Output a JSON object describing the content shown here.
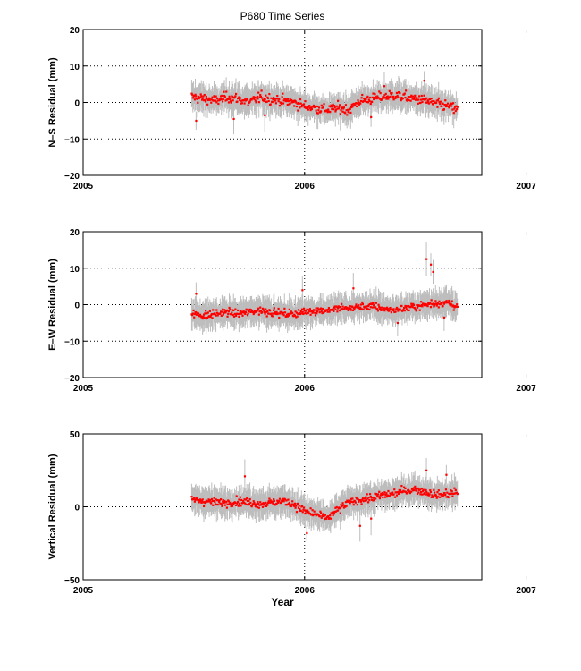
{
  "figure": {
    "title": "P680 Time Series",
    "xlabel": "Year",
    "colors": {
      "points": "#ff0000",
      "error_bars": "#bdbdbd",
      "grid": "#000000",
      "background": "#ffffff"
    }
  },
  "chart_data": [
    {
      "type": "scatter",
      "title": "P680 Time Series",
      "ylabel": "N–S Residual (mm)",
      "xlabel": "",
      "xlim": [
        2005,
        2006.8
      ],
      "ylim": [
        -20,
        20
      ],
      "xticks": [
        2005,
        2006,
        2007
      ],
      "xticklabels": [
        "2005",
        "2006",
        "2007"
      ],
      "yticks": [
        -20,
        -10,
        0,
        10,
        20
      ],
      "yticklabels": [
        "−20",
        "−10",
        "0",
        "10",
        "20"
      ],
      "grid": "dotted",
      "x_range": [
        2005.49,
        2006.69
      ],
      "series": [
        {
          "x": [
            2005.5,
            2005.55,
            2005.6,
            2005.65,
            2005.7,
            2005.75,
            2005.8,
            2005.85,
            2005.9,
            2005.95,
            2006.0,
            2006.05,
            2006.1,
            2006.15,
            2006.2,
            2006.25,
            2006.3,
            2006.35,
            2006.4,
            2006.45,
            2006.5,
            2006.55,
            2006.6,
            2006.65,
            2006.69
          ],
          "y": [
            1.5,
            1.0,
            0.5,
            1.5,
            1.0,
            0.0,
            1.5,
            1.0,
            0.5,
            0.0,
            -1.0,
            -1.5,
            -2.0,
            -1.5,
            -2.0,
            0.5,
            1.0,
            1.5,
            2.0,
            1.5,
            1.0,
            0.5,
            -0.5,
            -1.0,
            -2.0
          ],
          "noise": 2.0,
          "error": 3.5
        }
      ],
      "outliers": [
        [
          2005.51,
          -5.0
        ],
        [
          2005.68,
          -4.5
        ],
        [
          2005.82,
          -3.5
        ],
        [
          2006.54,
          6.0
        ],
        [
          2006.3,
          -4.0
        ],
        [
          2006.36,
          4.5
        ]
      ]
    },
    {
      "type": "scatter",
      "ylabel": "E–W Residual (mm)",
      "xlabel": "",
      "xlim": [
        2005,
        2006.8
      ],
      "ylim": [
        -20,
        20
      ],
      "xticks": [
        2005,
        2006,
        2007
      ],
      "xticklabels": [
        "2005",
        "2006",
        "2007"
      ],
      "yticks": [
        -20,
        -10,
        0,
        10,
        20
      ],
      "yticklabels": [
        "−20",
        "−10",
        "0",
        "10",
        "20"
      ],
      "grid": "dotted",
      "x_range": [
        2005.49,
        2006.69
      ],
      "series": [
        {
          "x": [
            2005.5,
            2005.55,
            2005.6,
            2005.65,
            2005.7,
            2005.75,
            2005.8,
            2005.85,
            2005.9,
            2005.95,
            2006.0,
            2006.05,
            2006.1,
            2006.15,
            2006.2,
            2006.25,
            2006.3,
            2006.35,
            2006.4,
            2006.45,
            2006.5,
            2006.55,
            2006.6,
            2006.65,
            2006.69
          ],
          "y": [
            -2.5,
            -3.0,
            -2.5,
            -2.0,
            -2.5,
            -2.0,
            -1.5,
            -2.0,
            -2.5,
            -2.5,
            -2.0,
            -1.5,
            -1.5,
            -1.0,
            -1.0,
            -0.5,
            -0.5,
            -1.0,
            -1.5,
            -1.0,
            -0.5,
            0.0,
            0.5,
            0.5,
            -0.5
          ],
          "noise": 1.5,
          "error": 3.5
        }
      ],
      "outliers": [
        [
          2005.51,
          3.0
        ],
        [
          2005.99,
          4.0
        ],
        [
          2006.22,
          4.5
        ],
        [
          2006.55,
          12.5
        ],
        [
          2006.57,
          11.0
        ],
        [
          2006.58,
          9.0
        ],
        [
          2006.42,
          -5.0
        ],
        [
          2006.63,
          -3.5
        ]
      ]
    },
    {
      "type": "scatter",
      "ylabel": "Vertical Residual (mm)",
      "xlabel": "Year",
      "xlim": [
        2005,
        2006.8
      ],
      "ylim": [
        -50,
        50
      ],
      "xticks": [
        2005,
        2006,
        2007
      ],
      "xticklabels": [
        "2005",
        "2006",
        "2007"
      ],
      "yticks": [
        -50,
        0,
        50
      ],
      "yticklabels": [
        "−50",
        "0",
        "50"
      ],
      "grid": "dotted",
      "x_range": [
        2005.49,
        2006.69
      ],
      "series": [
        {
          "x": [
            2005.5,
            2005.55,
            2005.6,
            2005.65,
            2005.7,
            2005.75,
            2005.8,
            2005.85,
            2005.9,
            2005.95,
            2006.0,
            2006.05,
            2006.1,
            2006.15,
            2006.2,
            2006.25,
            2006.3,
            2006.35,
            2006.4,
            2006.45,
            2006.5,
            2006.55,
            2006.6,
            2006.65,
            2006.69
          ],
          "y": [
            5,
            4,
            3,
            3,
            4,
            3,
            2,
            3,
            4,
            2,
            -3,
            -5,
            -8,
            -2,
            3,
            5,
            6,
            8,
            9,
            11,
            12,
            10,
            8,
            9,
            10
          ],
          "noise": 4.0,
          "error": 9.0
        }
      ],
      "outliers": [
        [
          2005.73,
          21
        ],
        [
          2006.01,
          -18
        ],
        [
          2006.25,
          -13
        ],
        [
          2006.3,
          -8
        ],
        [
          2006.55,
          25
        ],
        [
          2006.64,
          22
        ]
      ]
    }
  ]
}
